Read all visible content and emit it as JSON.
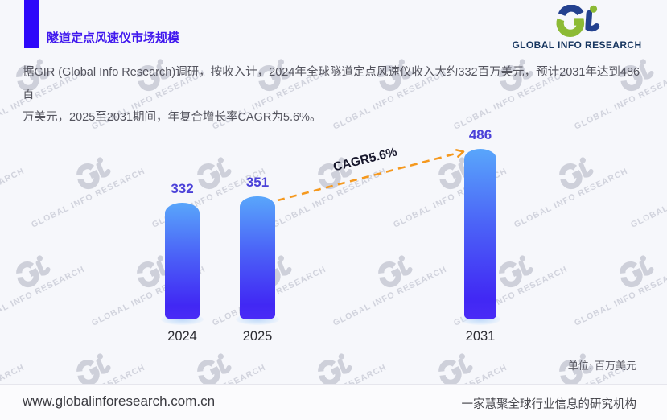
{
  "header": {
    "title": "隧道定点风速仪市场规模",
    "logo": {
      "brand_text": "GLOBAL INFO RESEARCH",
      "green": "#8CBA35",
      "navy": "#23418F"
    }
  },
  "intro": {
    "lines": [
      "据GIR (Global Info Research)调研，按收入计，2024年全球隧道定点风速仪收入大约332百万美元，预计2031年达到486百",
      "万美元，2025至2031期间，年复合增长率CAGR为5.6%。"
    ]
  },
  "chart_data": {
    "type": "bar",
    "title": "隧道定点风速仪市场规模",
    "categories": [
      "2024",
      "2025",
      "2031"
    ],
    "values": [
      332,
      351,
      486
    ],
    "unit_label": "单位: 百万美元",
    "unit": "百万美元",
    "cagr_label": "CAGR5.6%",
    "xlabel": "",
    "ylabel": "",
    "ylim": [
      0,
      560
    ],
    "grid": false,
    "legend": "none",
    "bar_color_top": "#59A6FB",
    "bar_color_bottom": "#4128F4",
    "value_label_color": "#4B41D8",
    "trend_line_color": "#F5991F",
    "annotation": "dashed orange CAGR arrow from 2025 bar top to 2031 bar top"
  },
  "watermark_text": "GLOBAL INFO RESEARCH",
  "footer": {
    "website": "www.globalinforesearch.com.cn",
    "tagline": "一家慧聚全球行业信息的研究机构"
  },
  "accent_color": "#2E08FA"
}
